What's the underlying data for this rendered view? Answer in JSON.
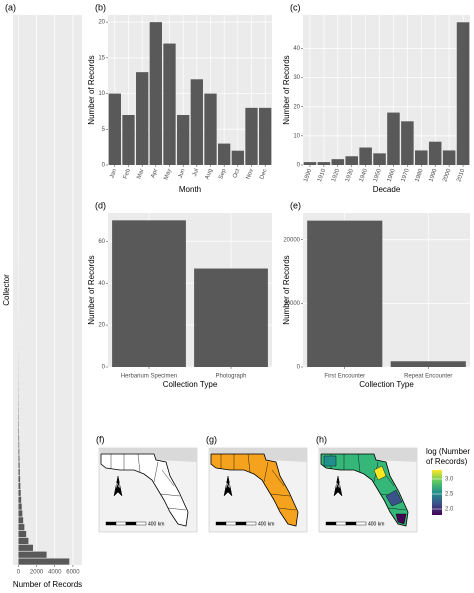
{
  "chart_data": [
    {
      "type": "barh",
      "label": "(a)",
      "y_label": "Collector",
      "x_label": "Number of Records",
      "categories": [
        null,
        null,
        null,
        null,
        null,
        null,
        null,
        null,
        null,
        null,
        null,
        null,
        null,
        null,
        null,
        null,
        null,
        null,
        null,
        null,
        null,
        null,
        null,
        null,
        null,
        null,
        null,
        null,
        null,
        null,
        null,
        null,
        null,
        null,
        null,
        null,
        null,
        null,
        null,
        null,
        null,
        null,
        null,
        null,
        null,
        null,
        null,
        null,
        null,
        null,
        null,
        null,
        null,
        null,
        null,
        null,
        null,
        null,
        null,
        null,
        null,
        null,
        null,
        null,
        null,
        null,
        null,
        null,
        null,
        null,
        null,
        null,
        null,
        null,
        null,
        null,
        null,
        null,
        null,
        null
      ],
      "values": [
        5600,
        3100,
        1600,
        1100,
        850,
        650,
        520,
        430,
        360,
        300,
        250,
        210,
        180,
        150,
        130,
        110,
        95,
        80,
        70,
        60,
        52,
        45,
        40,
        35,
        30,
        26,
        23,
        20,
        18,
        16,
        14,
        12,
        11,
        10,
        9,
        8,
        7,
        6,
        6,
        5,
        5,
        4,
        4,
        4,
        3,
        3,
        3,
        3,
        2,
        2,
        2,
        2,
        2,
        2,
        2,
        1,
        1,
        1,
        1,
        1,
        1,
        1,
        1,
        1,
        1,
        1,
        1,
        1,
        1,
        1,
        1,
        1,
        1,
        1,
        1,
        1,
        1,
        1,
        1,
        1
      ],
      "color": "#595959",
      "xlim": [
        -600,
        7000
      ],
      "xticks": [
        0,
        2000,
        4000,
        6000
      ],
      "grid": true
    },
    {
      "type": "bar",
      "label": "(b)",
      "y_label": "Number of Records",
      "x_label": "Month",
      "categories": [
        "Jan",
        "Feb",
        "Mar",
        "Apr",
        "May",
        "Jun",
        "Jul",
        "Aug",
        "Sep",
        "Oct",
        "Nov",
        "Dec"
      ],
      "values": [
        10,
        7,
        13,
        20,
        17,
        7,
        12,
        10,
        3,
        2,
        8,
        8
      ],
      "color": "#595959",
      "ylim": [
        0,
        21
      ],
      "yticks": [
        0,
        5,
        10,
        15,
        20
      ],
      "grid": true,
      "rotate_labels": true
    },
    {
      "type": "bar",
      "label": "(c)",
      "y_label": "Number of Records",
      "x_label": "Decade",
      "categories": [
        "1890",
        "1910",
        "1920",
        "1930",
        "1940",
        "1950",
        "1960",
        "1970",
        "1980",
        "1990",
        "2000",
        "2010"
      ],
      "values": [
        1,
        1,
        2,
        3,
        6,
        4,
        18,
        15,
        5,
        8,
        5,
        49
      ],
      "color": "#595959",
      "ylim": [
        0,
        51.5
      ],
      "yticks": [
        0,
        10,
        20,
        30,
        40
      ],
      "grid": true,
      "rotate_labels": true
    },
    {
      "type": "bar",
      "label": "(d)",
      "y_label": "Number of Records",
      "x_label": "Collection Type",
      "categories": [
        "Herbarium Specimen",
        "Photograph"
      ],
      "values": [
        70,
        47
      ],
      "color": "#595959",
      "ylim": [
        0,
        73.5
      ],
      "yticks": [
        0,
        20,
        40,
        60
      ],
      "grid": true,
      "rotate_labels": false
    },
    {
      "type": "bar",
      "label": "(e)",
      "y_label": "Number of Records",
      "x_label": "Collection Type",
      "categories": [
        "First Encounter",
        "Repeat Encounter"
      ],
      "values": [
        23000,
        900
      ],
      "color": "#595959",
      "ylim": [
        0,
        24200
      ],
      "yticks": [
        0,
        10000,
        20000
      ],
      "grid": true,
      "rotate_labels": false
    },
    {
      "type": "map",
      "label": "(f)",
      "north_label": "N",
      "scale_label": "400 km",
      "color": "#ffffff"
    },
    {
      "type": "map",
      "label": "(g)",
      "north_label": "N",
      "scale_label": "400 km",
      "color": "#f5a21f"
    },
    {
      "type": "map",
      "label": "(h)",
      "north_label": "N",
      "scale_label": "400 km",
      "color": "#35b779",
      "colorbar": {
        "title": [
          "log (Number",
          "of Records)"
        ],
        "lim": [
          1.8,
          3.3
        ],
        "ticks": [
          {
            "value": 2,
            "label": "2.0"
          },
          2.5,
          {
            "value": 3,
            "label": "3.0"
          }
        ]
      }
    }
  ]
}
